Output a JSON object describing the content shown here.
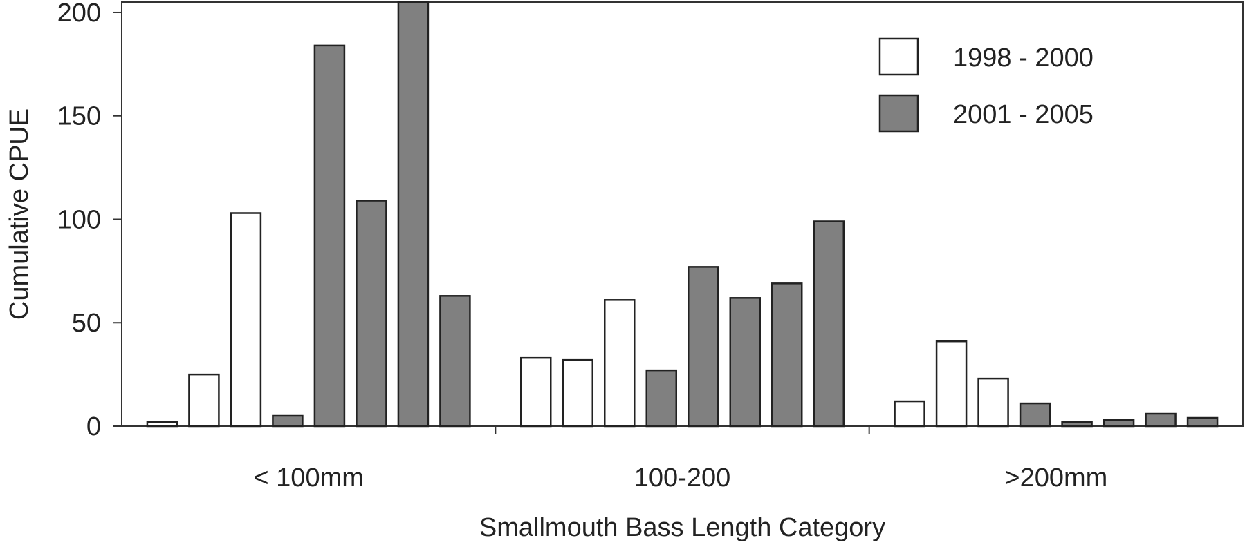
{
  "chart_data": {
    "type": "bar",
    "xlabel": "Smallmouth Bass Length Category",
    "ylabel": "Cumulative CPUE",
    "ylim": [
      0,
      205
    ],
    "yticks": [
      0,
      50,
      100,
      150,
      200
    ],
    "grid": false,
    "legend_position": "top-right",
    "categories": [
      "< 100mm",
      "100-200",
      ">200mm"
    ],
    "series": [
      {
        "name": "1998 - 2000",
        "color": "#ffffff"
      },
      {
        "name": "2001 - 2005",
        "color": "#808080"
      }
    ],
    "bars": [
      {
        "category": "< 100mm",
        "series": "1998 - 2000",
        "value": 2
      },
      {
        "category": "< 100mm",
        "series": "1998 - 2000",
        "value": 25
      },
      {
        "category": "< 100mm",
        "series": "1998 - 2000",
        "value": 103
      },
      {
        "category": "< 100mm",
        "series": "2001 - 2005",
        "value": 5
      },
      {
        "category": "< 100mm",
        "series": "2001 - 2005",
        "value": 184
      },
      {
        "category": "< 100mm",
        "series": "2001 - 2005",
        "value": 109
      },
      {
        "category": "< 100mm",
        "series": "2001 - 2005",
        "value": 205
      },
      {
        "category": "< 100mm",
        "series": "2001 - 2005",
        "value": 63
      },
      {
        "category": "100-200",
        "series": "1998 - 2000",
        "value": 33
      },
      {
        "category": "100-200",
        "series": "1998 - 2000",
        "value": 32
      },
      {
        "category": "100-200",
        "series": "1998 - 2000",
        "value": 61
      },
      {
        "category": "100-200",
        "series": "2001 - 2005",
        "value": 27
      },
      {
        "category": "100-200",
        "series": "2001 - 2005",
        "value": 77
      },
      {
        "category": "100-200",
        "series": "2001 - 2005",
        "value": 62
      },
      {
        "category": "100-200",
        "series": "2001 - 2005",
        "value": 69
      },
      {
        "category": "100-200",
        "series": "2001 - 2005",
        "value": 99
      },
      {
        "category": ">200mm",
        "series": "1998 - 2000",
        "value": 12
      },
      {
        "category": ">200mm",
        "series": "1998 - 2000",
        "value": 41
      },
      {
        "category": ">200mm",
        "series": "1998 - 2000",
        "value": 23
      },
      {
        "category": ">200mm",
        "series": "2001 - 2005",
        "value": 11
      },
      {
        "category": ">200mm",
        "series": "2001 - 2005",
        "value": 2
      },
      {
        "category": ">200mm",
        "series": "2001 - 2005",
        "value": 3
      },
      {
        "category": ">200mm",
        "series": "2001 - 2005",
        "value": 6
      },
      {
        "category": ">200mm",
        "series": "2001 - 2005",
        "value": 4
      }
    ]
  }
}
